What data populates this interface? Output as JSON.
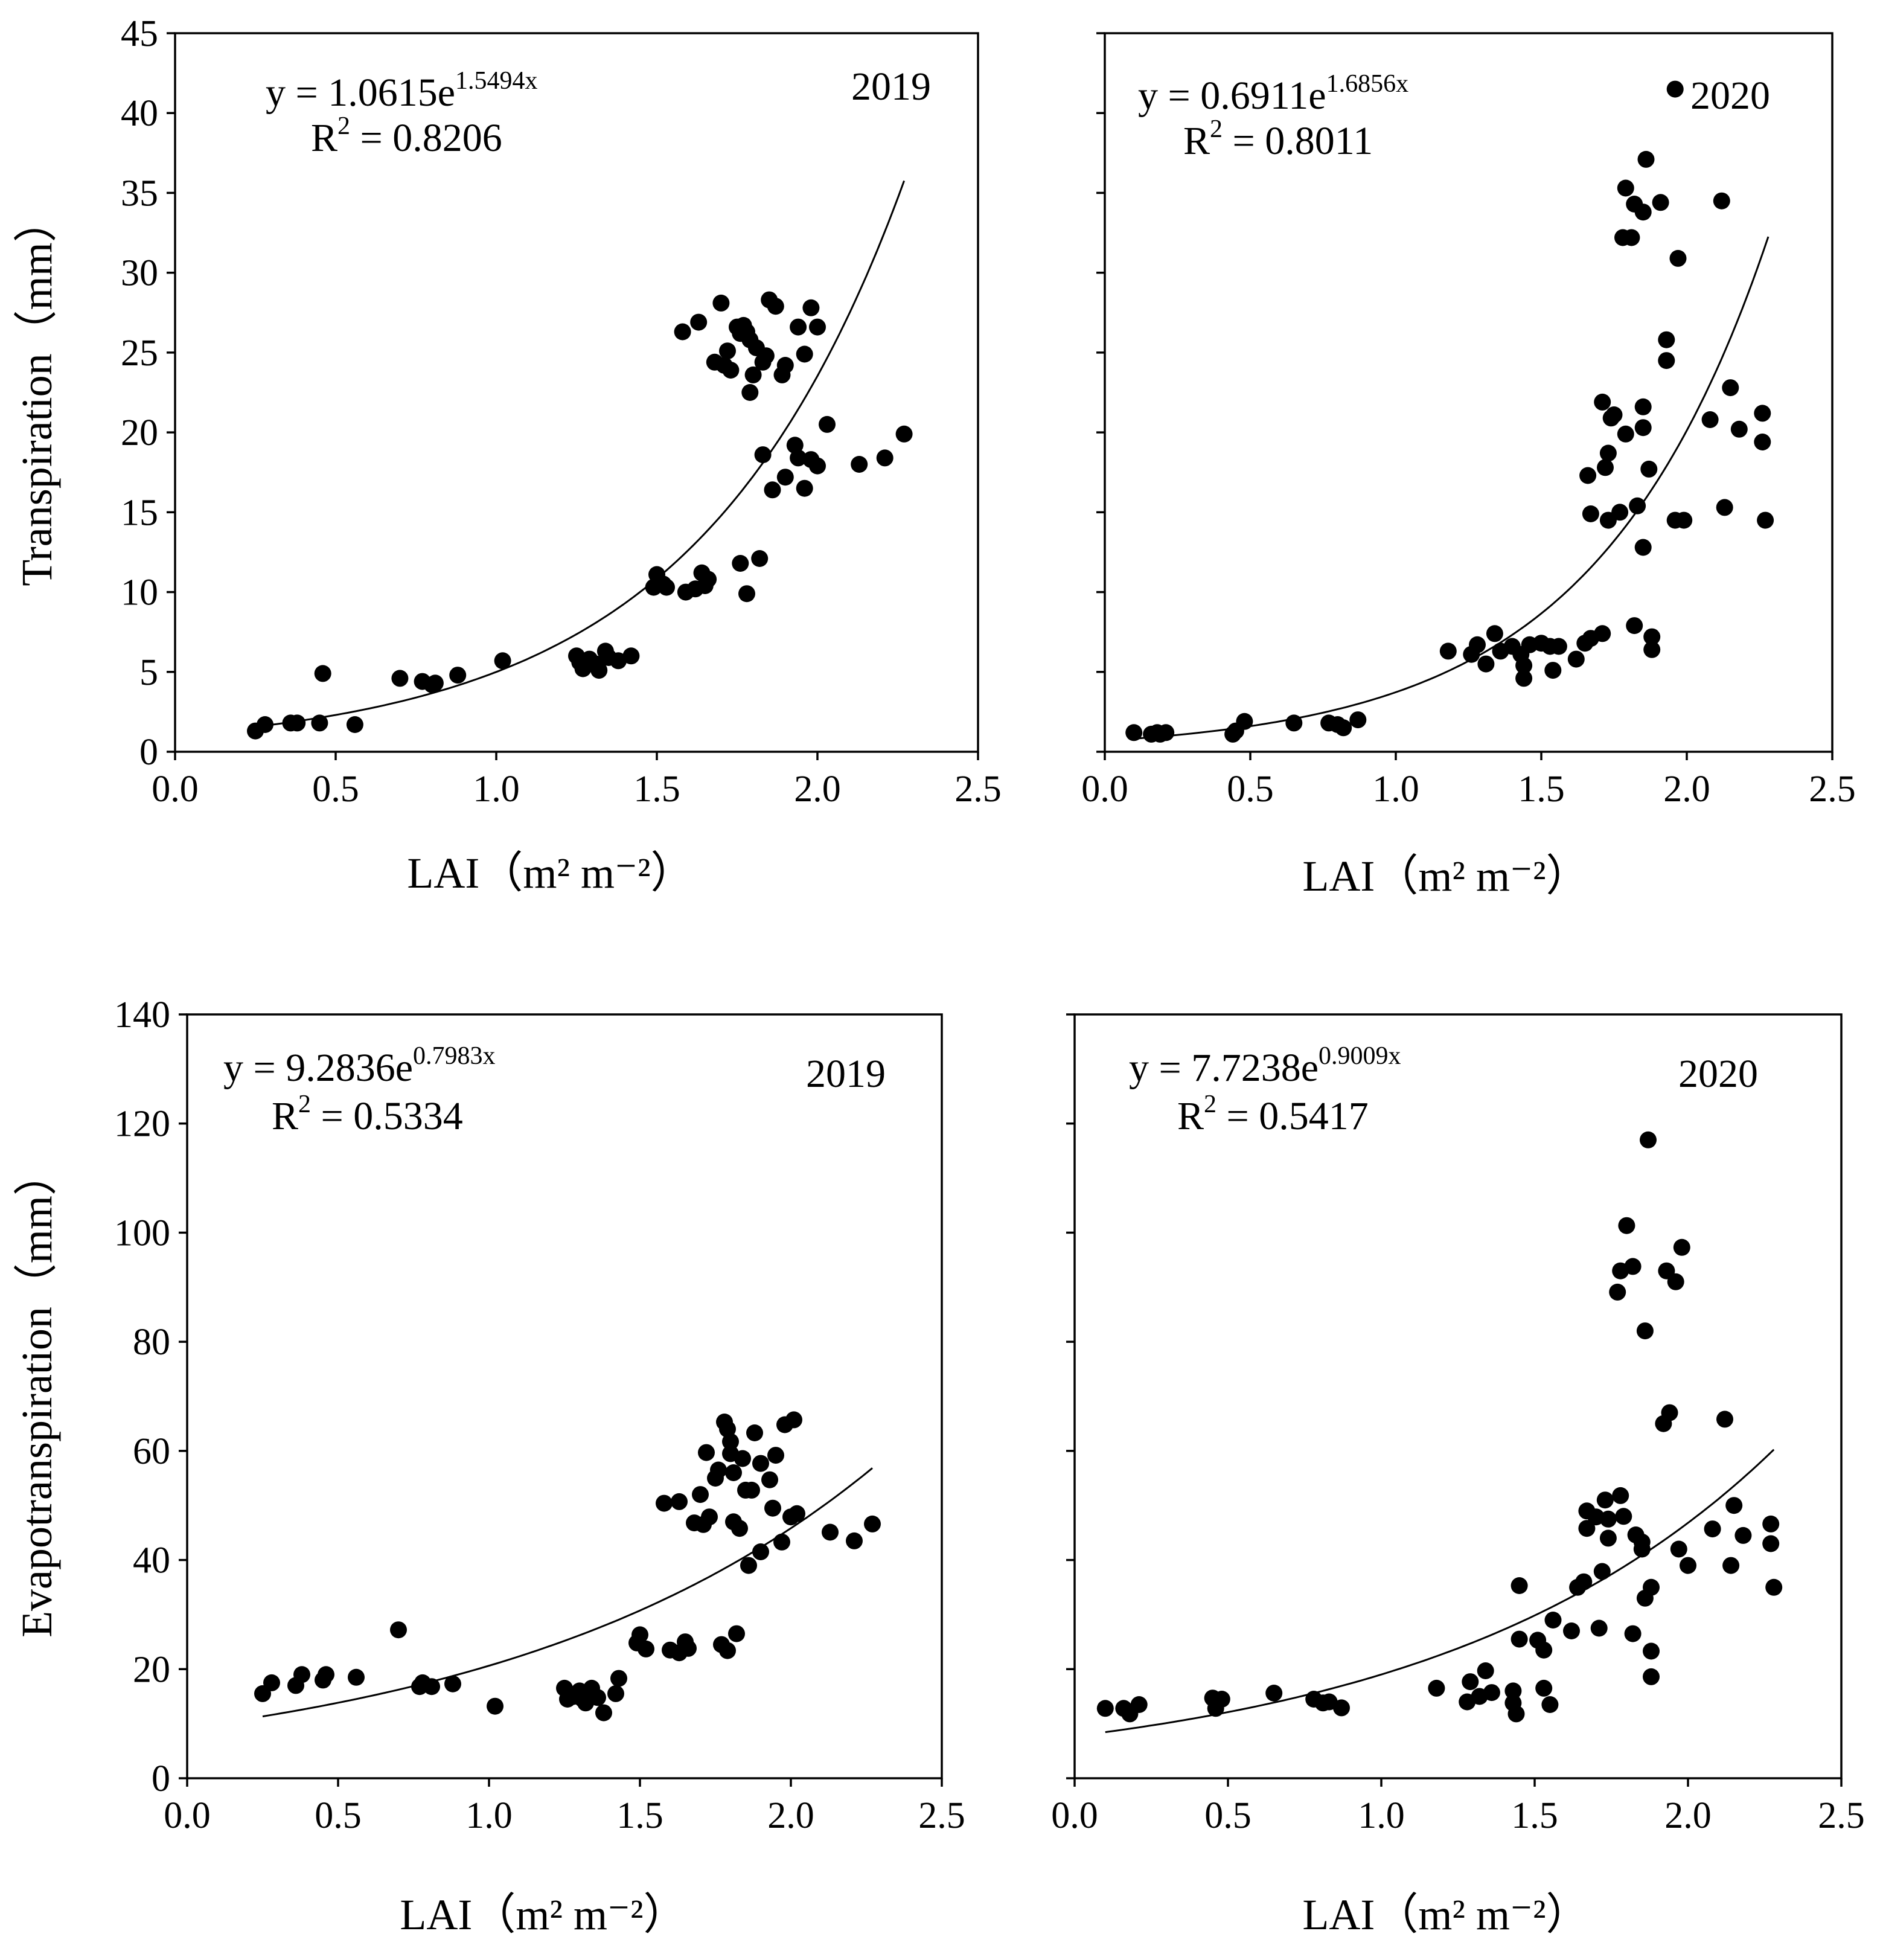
{
  "figure": {
    "description_free": true
  },
  "chart_data": [
    {
      "id": "tr2019",
      "type": "scatter",
      "title": "",
      "year": "2019",
      "ylabel": "Transpiration（mm）",
      "xlabel": "LAI（m² m⁻²）",
      "xlim": [
        0,
        2.5
      ],
      "ylim": [
        0,
        45
      ],
      "xticks": [
        "0.0",
        "0.5",
        "1.0",
        "1.5",
        "2.0",
        "2.5"
      ],
      "yticks": [
        "0",
        "5",
        "10",
        "15",
        "20",
        "25",
        "30",
        "35",
        "40",
        "45"
      ],
      "show_xtick_labels": true,
      "show_ytick_labels": true,
      "equation": {
        "prefix": "y = 1.0615e",
        "exponent": "1.5494x",
        "a": 1.0615,
        "b": 1.5494
      },
      "r2": {
        "prefix": "R",
        "sup": "2",
        "value": " = 0.8206"
      },
      "fit_range": [
        0.25,
        2.27
      ],
      "points": [
        [
          0.25,
          1.3
        ],
        [
          0.28,
          1.7
        ],
        [
          0.36,
          1.8
        ],
        [
          0.38,
          1.8
        ],
        [
          0.45,
          1.8
        ],
        [
          0.46,
          4.9
        ],
        [
          0.56,
          1.7
        ],
        [
          0.7,
          4.6
        ],
        [
          0.77,
          4.4
        ],
        [
          0.8,
          4.2
        ],
        [
          0.81,
          4.3
        ],
        [
          0.88,
          4.8
        ],
        [
          1.02,
          5.7
        ],
        [
          1.25,
          6.0
        ],
        [
          1.26,
          5.6
        ],
        [
          1.27,
          5.2
        ],
        [
          1.29,
          5.8
        ],
        [
          1.31,
          5.5
        ],
        [
          1.32,
          5.1
        ],
        [
          1.34,
          6.3
        ],
        [
          1.35,
          5.9
        ],
        [
          1.38,
          5.7
        ],
        [
          1.42,
          6.0
        ],
        [
          1.49,
          10.3
        ],
        [
          1.5,
          11.1
        ],
        [
          1.52,
          10.5
        ],
        [
          1.53,
          10.3
        ],
        [
          1.59,
          10.0
        ],
        [
          1.62,
          10.2
        ],
        [
          1.64,
          11.2
        ],
        [
          1.65,
          10.4
        ],
        [
          1.66,
          10.8
        ],
        [
          1.76,
          11.8
        ],
        [
          1.78,
          9.9
        ],
        [
          1.82,
          12.1
        ],
        [
          1.83,
          18.6
        ],
        [
          1.86,
          16.4
        ],
        [
          1.9,
          17.2
        ],
        [
          1.93,
          19.2
        ],
        [
          1.94,
          18.4
        ],
        [
          1.96,
          16.5
        ],
        [
          1.98,
          18.3
        ],
        [
          2.0,
          17.9
        ],
        [
          2.03,
          20.5
        ],
        [
          2.13,
          18.0
        ],
        [
          2.21,
          18.4
        ],
        [
          2.27,
          19.9
        ],
        [
          1.58,
          26.3
        ],
        [
          1.63,
          26.9
        ],
        [
          1.68,
          24.4
        ],
        [
          1.7,
          28.1
        ],
        [
          1.71,
          24.2
        ],
        [
          1.72,
          25.1
        ],
        [
          1.73,
          23.9
        ],
        [
          1.75,
          26.6
        ],
        [
          1.76,
          26.2
        ],
        [
          1.77,
          26.7
        ],
        [
          1.78,
          26.3
        ],
        [
          1.79,
          25.8
        ],
        [
          1.79,
          22.5
        ],
        [
          1.8,
          23.6
        ],
        [
          1.81,
          25.3
        ],
        [
          1.83,
          24.4
        ],
        [
          1.84,
          24.8
        ],
        [
          1.85,
          28.3
        ],
        [
          1.87,
          27.9
        ],
        [
          1.89,
          23.6
        ],
        [
          1.9,
          24.2
        ],
        [
          1.94,
          26.6
        ],
        [
          1.96,
          24.9
        ],
        [
          1.98,
          27.8
        ],
        [
          2.0,
          26.6
        ]
      ]
    },
    {
      "id": "tr2020",
      "type": "scatter",
      "title": "",
      "year": "2020",
      "ylabel": "",
      "xlabel": "LAI（m² m⁻²）",
      "xlim": [
        0,
        2.5
      ],
      "ylim": [
        0,
        45
      ],
      "xticks": [
        "0.0",
        "0.5",
        "1.0",
        "1.5",
        "2.0",
        "2.5"
      ],
      "yticks": [
        "0",
        "5",
        "10",
        "15",
        "20",
        "25",
        "30",
        "35",
        "40",
        "45"
      ],
      "show_xtick_labels": true,
      "show_ytick_labels": false,
      "equation": {
        "prefix": "y = 0.6911e",
        "exponent": "1.6856x",
        "a": 0.6911,
        "b": 1.6856
      },
      "r2": {
        "prefix": "R",
        "sup": "2",
        "value": " = 0.8011"
      },
      "fit_range": [
        0.1,
        2.28
      ],
      "points": [
        [
          0.1,
          1.2
        ],
        [
          0.16,
          1.1
        ],
        [
          0.18,
          1.2
        ],
        [
          0.19,
          1.1
        ],
        [
          0.21,
          1.2
        ],
        [
          0.44,
          1.1
        ],
        [
          0.45,
          1.3
        ],
        [
          0.48,
          1.9
        ],
        [
          0.65,
          1.8
        ],
        [
          0.77,
          1.8
        ],
        [
          0.8,
          1.7
        ],
        [
          0.82,
          1.5
        ],
        [
          0.87,
          2.0
        ],
        [
          1.18,
          6.3
        ],
        [
          1.26,
          6.1
        ],
        [
          1.28,
          6.7
        ],
        [
          1.31,
          5.5
        ],
        [
          1.34,
          7.4
        ],
        [
          1.36,
          6.3
        ],
        [
          1.4,
          6.6
        ],
        [
          1.43,
          6.1
        ],
        [
          1.44,
          5.4
        ],
        [
          1.44,
          4.6
        ],
        [
          1.46,
          6.7
        ],
        [
          1.5,
          6.8
        ],
        [
          1.53,
          6.6
        ],
        [
          1.54,
          5.1
        ],
        [
          1.56,
          6.6
        ],
        [
          1.62,
          5.8
        ],
        [
          1.65,
          6.8
        ],
        [
          1.67,
          7.1
        ],
        [
          1.71,
          7.4
        ],
        [
          1.66,
          17.3
        ],
        [
          1.67,
          14.9
        ],
        [
          1.71,
          21.9
        ],
        [
          1.73,
          18.7
        ],
        [
          1.72,
          17.8
        ],
        [
          1.73,
          14.5
        ],
        [
          1.74,
          20.9
        ],
        [
          1.75,
          21.1
        ],
        [
          1.77,
          15.0
        ],
        [
          1.79,
          19.9
        ],
        [
          1.83,
          15.4
        ],
        [
          1.85,
          21.6
        ],
        [
          1.85,
          20.3
        ],
        [
          1.85,
          12.8
        ],
        [
          1.87,
          17.7
        ],
        [
          1.82,
          7.9
        ],
        [
          1.88,
          7.2
        ],
        [
          1.88,
          6.4
        ],
        [
          1.78,
          32.2
        ],
        [
          1.79,
          35.3
        ],
        [
          1.81,
          32.2
        ],
        [
          1.82,
          34.3
        ],
        [
          1.85,
          33.8
        ],
        [
          1.86,
          37.1
        ],
        [
          1.91,
          34.4
        ],
        [
          1.93,
          25.8
        ],
        [
          1.93,
          24.5
        ],
        [
          1.96,
          41.5
        ],
        [
          1.97,
          30.9
        ],
        [
          1.96,
          14.5
        ],
        [
          1.99,
          14.5
        ],
        [
          2.08,
          20.8
        ],
        [
          2.12,
          34.5
        ],
        [
          2.13,
          15.3
        ],
        [
          2.15,
          22.8
        ],
        [
          2.18,
          20.2
        ],
        [
          2.26,
          21.2
        ],
        [
          2.26,
          19.4
        ],
        [
          2.27,
          14.5
        ]
      ]
    },
    {
      "id": "et2019",
      "type": "scatter",
      "title": "",
      "year": "2019",
      "ylabel": "Evapotranspiration（mm）",
      "xlabel": "LAI（m² m⁻²）",
      "xlim": [
        0,
        2.5
      ],
      "ylim": [
        0,
        140
      ],
      "xticks": [
        "0.0",
        "0.5",
        "1.0",
        "1.5",
        "2.0",
        "2.5"
      ],
      "yticks": [
        "0",
        "20",
        "40",
        "60",
        "80",
        "100",
        "120",
        "140"
      ],
      "show_xtick_labels": true,
      "show_ytick_labels": true,
      "equation": {
        "prefix": "y = 9.2836e",
        "exponent": "0.7983x",
        "a": 9.2836,
        "b": 0.7983
      },
      "r2": {
        "prefix": "R",
        "sup": "2",
        "value": " = 0.5334"
      },
      "fit_range": [
        0.25,
        2.27
      ],
      "points": [
        [
          0.25,
          15.5
        ],
        [
          0.28,
          17.5
        ],
        [
          0.36,
          17.0
        ],
        [
          0.38,
          19.0
        ],
        [
          0.45,
          18.0
        ],
        [
          0.46,
          19.0
        ],
        [
          0.56,
          18.5
        ],
        [
          0.7,
          27.2
        ],
        [
          0.77,
          16.8
        ],
        [
          0.78,
          17.5
        ],
        [
          0.81,
          16.8
        ],
        [
          0.88,
          17.3
        ],
        [
          1.02,
          13.2
        ],
        [
          1.25,
          16.5
        ],
        [
          1.26,
          14.5
        ],
        [
          1.28,
          15.0
        ],
        [
          1.3,
          16.0
        ],
        [
          1.31,
          14.5
        ],
        [
          1.32,
          13.8
        ],
        [
          1.34,
          16.5
        ],
        [
          1.36,
          14.8
        ],
        [
          1.38,
          12.0
        ],
        [
          1.42,
          15.5
        ],
        [
          1.43,
          18.3
        ],
        [
          1.49,
          24.8
        ],
        [
          1.5,
          26.3
        ],
        [
          1.52,
          23.7
        ],
        [
          1.58,
          50.4
        ],
        [
          1.6,
          23.5
        ],
        [
          1.63,
          50.7
        ],
        [
          1.63,
          23.0
        ],
        [
          1.65,
          25.0
        ],
        [
          1.66,
          23.8
        ],
        [
          1.68,
          46.8
        ],
        [
          1.7,
          52.0
        ],
        [
          1.71,
          46.5
        ],
        [
          1.72,
          59.7
        ],
        [
          1.73,
          47.9
        ],
        [
          1.75,
          55.0
        ],
        [
          1.76,
          56.5
        ],
        [
          1.77,
          24.5
        ],
        [
          1.78,
          65.3
        ],
        [
          1.79,
          23.4
        ],
        [
          1.79,
          64.0
        ],
        [
          1.8,
          61.7
        ],
        [
          1.8,
          59.5
        ],
        [
          1.81,
          47.0
        ],
        [
          1.81,
          56.0
        ],
        [
          1.82,
          26.5
        ],
        [
          1.83,
          45.8
        ],
        [
          1.84,
          58.6
        ],
        [
          1.85,
          52.8
        ],
        [
          1.86,
          39.0
        ],
        [
          1.87,
          52.8
        ],
        [
          1.88,
          63.3
        ],
        [
          1.9,
          57.7
        ],
        [
          1.9,
          41.5
        ],
        [
          1.93,
          54.7
        ],
        [
          1.94,
          49.5
        ],
        [
          1.95,
          59.2
        ],
        [
          1.97,
          43.3
        ],
        [
          1.98,
          64.8
        ],
        [
          2.01,
          65.7
        ],
        [
          2.0,
          47.9
        ],
        [
          2.02,
          48.5
        ],
        [
          2.13,
          45.1
        ],
        [
          2.21,
          43.5
        ],
        [
          2.27,
          46.6
        ]
      ]
    },
    {
      "id": "et2020",
      "type": "scatter",
      "title": "",
      "year": "2020",
      "ylabel": "",
      "xlabel": "LAI（m² m⁻²）",
      "xlim": [
        0,
        2.5
      ],
      "ylim": [
        0,
        140
      ],
      "xticks": [
        "0.0",
        "0.5",
        "1.0",
        "1.5",
        "2.0",
        "2.5"
      ],
      "yticks": [
        "0",
        "20",
        "40",
        "60",
        "80",
        "100",
        "120",
        "140"
      ],
      "show_xtick_labels": true,
      "show_ytick_labels": false,
      "equation": {
        "prefix": "y = 7.7238e",
        "exponent": "0.9009x",
        "a": 7.7238,
        "b": 0.9009
      },
      "r2": {
        "prefix": "R",
        "sup": "2",
        "value": " = 0.5417"
      },
      "fit_range": [
        0.1,
        2.28
      ],
      "points": [
        [
          0.1,
          12.8
        ],
        [
          0.16,
          12.8
        ],
        [
          0.18,
          11.8
        ],
        [
          0.21,
          13.5
        ],
        [
          0.45,
          14.7
        ],
        [
          0.46,
          12.8
        ],
        [
          0.48,
          14.5
        ],
        [
          0.65,
          15.6
        ],
        [
          0.78,
          14.5
        ],
        [
          0.81,
          13.8
        ],
        [
          0.83,
          14.0
        ],
        [
          0.87,
          12.9
        ],
        [
          1.18,
          16.5
        ],
        [
          1.28,
          14.0
        ],
        [
          1.29,
          17.7
        ],
        [
          1.32,
          15.0
        ],
        [
          1.34,
          19.7
        ],
        [
          1.36,
          15.7
        ],
        [
          1.43,
          16.0
        ],
        [
          1.43,
          13.8
        ],
        [
          1.44,
          11.8
        ],
        [
          1.45,
          25.5
        ],
        [
          1.45,
          35.3
        ],
        [
          1.51,
          25.3
        ],
        [
          1.53,
          16.5
        ],
        [
          1.53,
          23.5
        ],
        [
          1.55,
          13.5
        ],
        [
          1.56,
          29.0
        ],
        [
          1.62,
          27.0
        ],
        [
          1.64,
          35.0
        ],
        [
          1.66,
          36.0
        ],
        [
          1.67,
          49.0
        ],
        [
          1.67,
          45.8
        ],
        [
          1.7,
          47.9
        ],
        [
          1.71,
          27.5
        ],
        [
          1.72,
          37.9
        ],
        [
          1.73,
          51.0
        ],
        [
          1.74,
          44.0
        ],
        [
          1.74,
          47.5
        ],
        [
          1.77,
          89.1
        ],
        [
          1.78,
          93.0
        ],
        [
          1.78,
          51.8
        ],
        [
          1.79,
          48.0
        ],
        [
          1.8,
          101.3
        ],
        [
          1.82,
          93.8
        ],
        [
          1.82,
          26.5
        ],
        [
          1.83,
          44.6
        ],
        [
          1.85,
          43.3
        ],
        [
          1.85,
          42.0
        ],
        [
          1.86,
          33.0
        ],
        [
          1.86,
          82.0
        ],
        [
          1.87,
          117.0
        ],
        [
          1.88,
          35.0
        ],
        [
          1.88,
          18.6
        ],
        [
          1.88,
          23.3
        ],
        [
          1.92,
          65.0
        ],
        [
          1.93,
          93.0
        ],
        [
          1.94,
          67.0
        ],
        [
          1.96,
          91.0
        ],
        [
          1.97,
          42.0
        ],
        [
          1.98,
          97.3
        ],
        [
          2.0,
          39.0
        ],
        [
          2.08,
          45.7
        ],
        [
          2.12,
          65.8
        ],
        [
          2.14,
          39.0
        ],
        [
          2.15,
          50.0
        ],
        [
          2.18,
          44.5
        ],
        [
          2.27,
          46.6
        ],
        [
          2.27,
          43.0
        ],
        [
          2.28,
          35.0
        ]
      ]
    }
  ]
}
